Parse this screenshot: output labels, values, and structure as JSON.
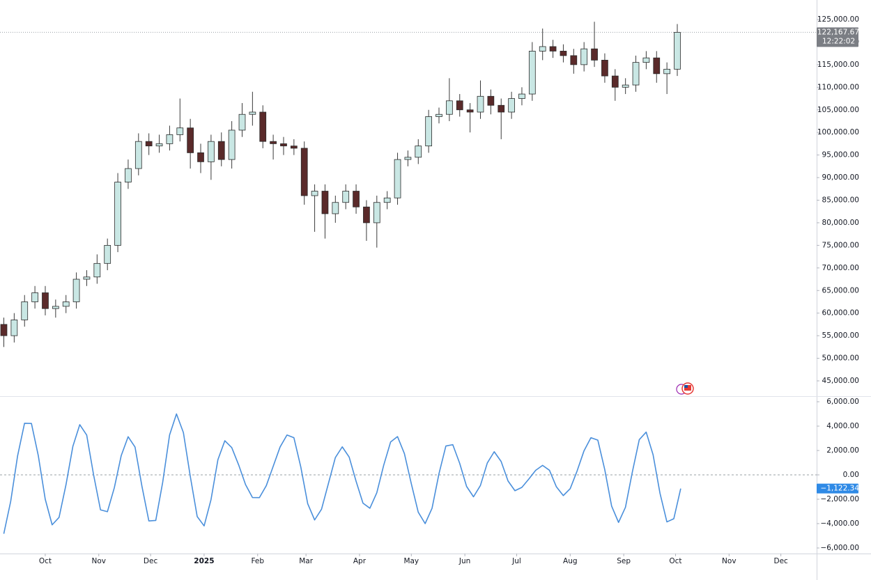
{
  "chart_data": [
    {
      "type": "candlestick",
      "xlim": [
        -0.37,
        78.45
      ],
      "ylim": [
        41763,
        129316
      ],
      "yticks": [
        {
          "value": 125000,
          "label": "125,000.00"
        },
        {
          "value": 120000,
          "label": "120,000.00"
        },
        {
          "value": 115000,
          "label": "115,000.00"
        },
        {
          "value": 110000,
          "label": "110,000.00"
        },
        {
          "value": 105000,
          "label": "105,000.00"
        },
        {
          "value": 100000,
          "label": "100,000.00"
        },
        {
          "value": 95000,
          "label": "95,000.00"
        },
        {
          "value": 90000,
          "label": "90,000.00"
        },
        {
          "value": 85000,
          "label": "85,000.00"
        },
        {
          "value": 80000,
          "label": "80,000.00"
        },
        {
          "value": 75000,
          "label": "75,000.00"
        },
        {
          "value": 70000,
          "label": "70,000.00"
        },
        {
          "value": 65000,
          "label": "65,000.00"
        },
        {
          "value": 60000,
          "label": "60,000.00"
        },
        {
          "value": 55000,
          "label": "55,000.00"
        },
        {
          "value": 50000,
          "label": "50,000.00"
        },
        {
          "value": 45000,
          "label": "45,000.00"
        }
      ],
      "up_color": "#c9e7e4",
      "down_color": "#5a2a2a",
      "wick_color": "#3a3a3a",
      "open": [
        57500,
        55000,
        58500,
        62500,
        64500,
        61000,
        61500,
        62500,
        67500,
        68000,
        71000,
        75000,
        89000,
        92000,
        98000,
        97000,
        97500,
        99500,
        101000,
        95500,
        93500,
        98000,
        94000,
        100500,
        104000,
        104500,
        98000,
        97500,
        97000,
        96500,
        86000,
        87000,
        82000,
        84500,
        87000,
        83500,
        80000,
        84500,
        85500,
        94000,
        94500,
        97000,
        103500,
        104000,
        107000,
        105000,
        104500,
        108000,
        106000,
        104500,
        107500,
        108500,
        118000,
        119000,
        118000,
        117000,
        115000,
        118500,
        116000,
        112500,
        110000,
        110500,
        115500,
        116500,
        113000,
        114000
      ],
      "high": [
        59000,
        60000,
        64000,
        66000,
        66000,
        63000,
        64000,
        69000,
        69500,
        73000,
        76500,
        91000,
        94000,
        99800,
        99800,
        99500,
        101500,
        107500,
        103000,
        97500,
        99500,
        100000,
        102500,
        106500,
        109000,
        106000,
        99500,
        99000,
        98500,
        98000,
        88500,
        88500,
        86000,
        88500,
        88500,
        85000,
        86000,
        87000,
        95500,
        96000,
        98500,
        105000,
        105500,
        112000,
        108500,
        106500,
        111500,
        109500,
        107500,
        109000,
        110000,
        120000,
        123000,
        120500,
        119500,
        118500,
        120000,
        124500,
        117500,
        114000,
        112000,
        117000,
        118000,
        118000,
        115500,
        124000
      ],
      "low": [
        52500,
        53500,
        57000,
        61000,
        59500,
        59000,
        60000,
        61000,
        66000,
        66500,
        69500,
        73500,
        87500,
        90500,
        95000,
        95500,
        96000,
        98000,
        92000,
        91000,
        89500,
        92500,
        92000,
        99000,
        101500,
        96500,
        94000,
        95000,
        95000,
        84000,
        78000,
        76500,
        80000,
        83000,
        82000,
        76000,
        74500,
        83000,
        84000,
        92500,
        93000,
        95500,
        102000,
        102500,
        103500,
        100000,
        103000,
        104000,
        98500,
        103000,
        106000,
        107000,
        116000,
        116500,
        115500,
        113000,
        113500,
        114500,
        111000,
        107000,
        108500,
        109000,
        114000,
        111000,
        108500,
        112500
      ],
      "close": [
        55000,
        58500,
        62500,
        64500,
        61000,
        61500,
        62500,
        67500,
        68000,
        71000,
        75000,
        89000,
        92000,
        98000,
        97000,
        97500,
        99500,
        101000,
        95500,
        93500,
        98000,
        94000,
        100500,
        104000,
        104500,
        98000,
        97500,
        97000,
        96500,
        86000,
        87000,
        82000,
        84500,
        87000,
        83500,
        80000,
        84500,
        85500,
        94000,
        94500,
        97000,
        103500,
        104000,
        107000,
        105000,
        104500,
        108000,
        106000,
        104500,
        107500,
        108500,
        118000,
        119000,
        118000,
        117000,
        115000,
        118500,
        116000,
        112500,
        110000,
        110500,
        115500,
        116500,
        113000,
        114000,
        122167.67
      ],
      "current_price": {
        "value": 122167.67,
        "label": "122,167.67"
      },
      "countdown": "12:22:02",
      "price_line_color": "#9aa0a6",
      "tag_color": "#7b7e84"
    },
    {
      "type": "line",
      "xlim": [
        -0.55,
        117.68
      ],
      "ylim": [
        -6457,
        6400
      ],
      "yticks": [
        {
          "value": 6000,
          "label": "6,000.00"
        },
        {
          "value": 4000,
          "label": "4,000.00"
        },
        {
          "value": 2000,
          "label": "2,000.00"
        },
        {
          "value": 0,
          "label": "0.00"
        },
        {
          "value": -2000,
          "label": "−2,000.00"
        },
        {
          "value": -4000,
          "label": "−4,000.00"
        },
        {
          "value": -6000,
          "label": "−6,000.00"
        }
      ],
      "xticks": [
        {
          "value": 6,
          "label": "Oct"
        },
        {
          "value": 13.75,
          "label": "Nov"
        },
        {
          "value": 21.25,
          "label": "Dec"
        },
        {
          "value": 29,
          "label": "2025"
        },
        {
          "value": 36.75,
          "label": "Feb"
        },
        {
          "value": 43.75,
          "label": "Mar"
        },
        {
          "value": 51.5,
          "label": "Apr"
        },
        {
          "value": 59,
          "label": "May"
        },
        {
          "value": 66.75,
          "label": "Jun"
        },
        {
          "value": 74.25,
          "label": "Jul"
        },
        {
          "value": 82,
          "label": "Aug"
        },
        {
          "value": 89.75,
          "label": "Sep"
        },
        {
          "value": 97.25,
          "label": "Oct"
        },
        {
          "value": 105,
          "label": "Nov"
        },
        {
          "value": 112.5,
          "label": "Dec"
        }
      ],
      "baseline": 0,
      "color": "#4a8fdb",
      "values": [
        -4830,
        -2170,
        1570,
        4230,
        4220,
        1560,
        -2000,
        -4100,
        -3490,
        -820,
        2340,
        4120,
        3270,
        0,
        -2870,
        -3020,
        -1060,
        1580,
        3130,
        2280,
        -940,
        -3780,
        -3740,
        -620,
        3270,
        5000,
        3470,
        -130,
        -3420,
        -4190,
        -2030,
        1250,
        2800,
        2240,
        820,
        -800,
        -1860,
        -1870,
        -890,
        700,
        2290,
        3270,
        3050,
        640,
        -2370,
        -3700,
        -2820,
        -700,
        1420,
        2300,
        1460,
        -520,
        -2320,
        -2740,
        -1470,
        790,
        2700,
        3140,
        1740,
        -730,
        -3060,
        -4000,
        -2740,
        90,
        2370,
        2480,
        950,
        -950,
        -1800,
        -875,
        975,
        1900,
        1100,
        -500,
        -1300,
        -1030,
        -350,
        370,
        780,
        375,
        -980,
        -1700,
        -1130,
        320,
        1975,
        3050,
        2850,
        440,
        -2570,
        -3900,
        -2660,
        240,
        2890,
        3510,
        1650,
        -1510,
        -3860,
        -3600,
        -1122.34
      ],
      "current_value": {
        "value": -1122.34,
        "label": "−1,122.34"
      },
      "tag_color": "#2f8ae6"
    }
  ]
}
